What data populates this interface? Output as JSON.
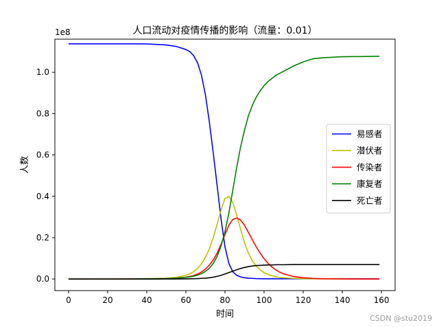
{
  "chart_data": {
    "type": "line",
    "title": "人口流动对疫情传播的影响（流量：0.01）",
    "xlabel": "时间",
    "ylabel": "人数",
    "y_offset_text": "1e8",
    "xlim": [
      -7,
      167
    ],
    "ylim": [
      -0.056,
      1.16
    ],
    "xticks": [
      0,
      20,
      40,
      60,
      80,
      100,
      120,
      140,
      160
    ],
    "yticks": [
      0.0,
      0.2,
      0.4,
      0.6,
      0.8,
      1.0
    ],
    "ytick_labels": [
      "0.0",
      "0.2",
      "0.4",
      "0.6",
      "0.8",
      "1.0"
    ],
    "legend_position": "center-right",
    "x": [
      0,
      10,
      20,
      30,
      40,
      50,
      55,
      60,
      62,
      64,
      66,
      68,
      70,
      72,
      74,
      76,
      78,
      80,
      82,
      84,
      86,
      88,
      90,
      92,
      94,
      96,
      98,
      100,
      102,
      104,
      106,
      108,
      110,
      115,
      120,
      125,
      130,
      140,
      150,
      159
    ],
    "series": [
      {
        "name": "易感者",
        "color": "#0000ff",
        "values": [
          1.1375,
          1.1375,
          1.1374,
          1.1373,
          1.137,
          1.132,
          1.125,
          1.11,
          1.1,
          1.08,
          1.045,
          0.985,
          0.89,
          0.76,
          0.61,
          0.45,
          0.29,
          0.155,
          0.075,
          0.035,
          0.018,
          0.01,
          0.006,
          0.004,
          0.003,
          0.002,
          0.0015,
          0.001,
          0.001,
          0.001,
          0.001,
          0.001,
          0.001,
          0.001,
          0.001,
          0.001,
          0.001,
          0.001,
          0.001,
          0.001
        ]
      },
      {
        "name": "潜伏者",
        "color": "#bfbf00",
        "values": [
          0.0,
          0.0,
          0.0,
          0.0005,
          0.001,
          0.004,
          0.008,
          0.018,
          0.025,
          0.036,
          0.052,
          0.074,
          0.105,
          0.145,
          0.2,
          0.265,
          0.335,
          0.39,
          0.4,
          0.37,
          0.31,
          0.24,
          0.175,
          0.125,
          0.088,
          0.062,
          0.044,
          0.031,
          0.022,
          0.016,
          0.011,
          0.008,
          0.006,
          0.003,
          0.0015,
          0.001,
          0.0005,
          0.0,
          0.0,
          0.0
        ]
      },
      {
        "name": "传染者",
        "color": "#ff0000",
        "values": [
          0.0,
          0.0,
          0.0,
          0.0003,
          0.0006,
          0.002,
          0.004,
          0.009,
          0.012,
          0.017,
          0.024,
          0.034,
          0.048,
          0.067,
          0.092,
          0.125,
          0.168,
          0.215,
          0.26,
          0.288,
          0.295,
          0.285,
          0.26,
          0.225,
          0.19,
          0.155,
          0.125,
          0.098,
          0.076,
          0.058,
          0.044,
          0.033,
          0.025,
          0.012,
          0.006,
          0.003,
          0.0015,
          0.0005,
          0.0,
          0.0
        ]
      },
      {
        "name": "康复者",
        "color": "#008000",
        "values": [
          0.0,
          0.0,
          0.0,
          0.0,
          0.001,
          0.002,
          0.004,
          0.008,
          0.01,
          0.014,
          0.019,
          0.026,
          0.037,
          0.052,
          0.075,
          0.11,
          0.16,
          0.23,
          0.32,
          0.43,
          0.54,
          0.64,
          0.72,
          0.79,
          0.84,
          0.88,
          0.91,
          0.935,
          0.955,
          0.97,
          0.985,
          0.995,
          1.005,
          1.03,
          1.05,
          1.065,
          1.07,
          1.075,
          1.076,
          1.077
        ]
      },
      {
        "name": "死亡者",
        "color": "#000000",
        "values": [
          0.0,
          0.0,
          0.0,
          0.0,
          0.0,
          0.0001,
          0.0003,
          0.0007,
          0.001,
          0.0014,
          0.002,
          0.003,
          0.004,
          0.006,
          0.009,
          0.013,
          0.018,
          0.024,
          0.031,
          0.038,
          0.045,
          0.051,
          0.056,
          0.06,
          0.063,
          0.065,
          0.066,
          0.067,
          0.068,
          0.068,
          0.069,
          0.069,
          0.069,
          0.07,
          0.07,
          0.07,
          0.07,
          0.07,
          0.07,
          0.07
        ]
      }
    ]
  },
  "watermark": "CSDN @stu2019"
}
